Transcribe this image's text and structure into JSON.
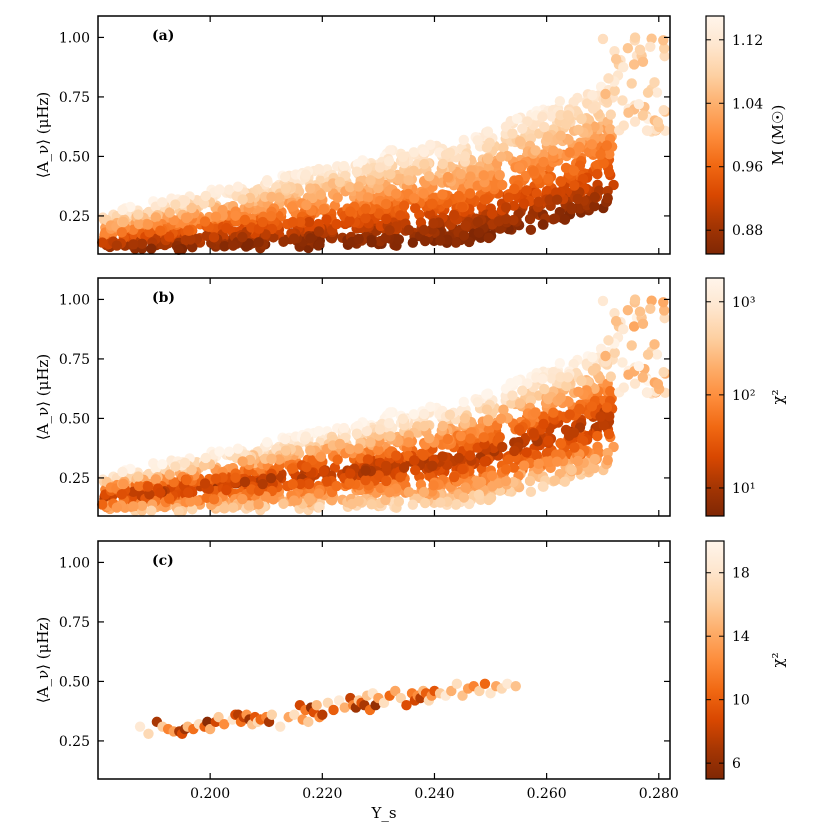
{
  "chart_data": [
    {
      "type": "scatter",
      "panel_label": "(a)",
      "ylabel": "⟨A_ν⟩ (μHz)",
      "xlim": [
        0.18,
        0.282
      ],
      "ylim": [
        0.09,
        1.09
      ],
      "yticks": [
        "0.25",
        "0.50",
        "0.75",
        "1.00"
      ],
      "colorbar": {
        "label": "M (M☉)",
        "scale": "linear",
        "range": [
          0.85,
          1.15
        ],
        "ticks": [
          "0.88",
          "0.96",
          "1.04",
          "1.12"
        ]
      },
      "grid": false,
      "legend": "none",
      "description": "Dense cloud (~1500 pts), Ys 0.180-0.282; low-mass (dark) points lie on the lower envelope, high-mass (light) on the upper envelope."
    },
    {
      "type": "scatter",
      "panel_label": "(b)",
      "ylabel": "⟨A_ν⟩ (μHz)",
      "xlim": [
        0.18,
        0.282
      ],
      "ylim": [
        0.09,
        1.09
      ],
      "yticks": [
        "0.25",
        "0.50",
        "0.75",
        "1.00"
      ],
      "colorbar": {
        "label": "χ²",
        "scale": "log",
        "range": [
          5,
          1800
        ],
        "ticks": [
          "10¹",
          "10²",
          "10³"
        ]
      },
      "grid": false,
      "legend": "none",
      "description": "Same models coloured by χ²; lowest χ² (dark) concentrated near the middle of the band."
    },
    {
      "type": "scatter",
      "panel_label": "(c)",
      "ylabel": "⟨A_ν⟩ (μHz)",
      "xlabel": "Y_s",
      "xlim": [
        0.18,
        0.282
      ],
      "ylim": [
        0.09,
        1.09
      ],
      "yticks": [
        "0.25",
        "0.50",
        "0.75",
        "1.00"
      ],
      "xticks": [
        "0.200",
        "0.220",
        "0.240",
        "0.260",
        "0.280"
      ],
      "colorbar": {
        "label": "χ²",
        "scale": "linear",
        "range": [
          5,
          20
        ],
        "ticks": [
          "6",
          "10",
          "14",
          "18"
        ]
      },
      "grid": false,
      "legend": "none",
      "points": [
        {
          "x": 0.1875,
          "y": 0.31,
          "c": 18.5
        },
        {
          "x": 0.189,
          "y": 0.28,
          "c": 17.0
        },
        {
          "x": 0.1905,
          "y": 0.33,
          "c": 7.0
        },
        {
          "x": 0.1915,
          "y": 0.31,
          "c": 16.0
        },
        {
          "x": 0.1925,
          "y": 0.3,
          "c": 12.0
        },
        {
          "x": 0.1935,
          "y": 0.29,
          "c": 13.5
        },
        {
          "x": 0.1945,
          "y": 0.29,
          "c": 7.0
        },
        {
          "x": 0.195,
          "y": 0.28,
          "c": 9.0
        },
        {
          "x": 0.1955,
          "y": 0.3,
          "c": 6.5
        },
        {
          "x": 0.196,
          "y": 0.31,
          "c": 15.0
        },
        {
          "x": 0.197,
          "y": 0.3,
          "c": 11.0
        },
        {
          "x": 0.198,
          "y": 0.32,
          "c": 17.5
        },
        {
          "x": 0.199,
          "y": 0.31,
          "c": 10.0
        },
        {
          "x": 0.1995,
          "y": 0.33,
          "c": 5.5
        },
        {
          "x": 0.2,
          "y": 0.3,
          "c": 14.5
        },
        {
          "x": 0.201,
          "y": 0.33,
          "c": 8.5
        },
        {
          "x": 0.2015,
          "y": 0.35,
          "c": 16.0
        },
        {
          "x": 0.2025,
          "y": 0.32,
          "c": 12.5
        },
        {
          "x": 0.204,
          "y": 0.34,
          "c": 18.0
        },
        {
          "x": 0.2045,
          "y": 0.36,
          "c": 9.0
        },
        {
          "x": 0.205,
          "y": 0.36,
          "c": 7.5
        },
        {
          "x": 0.2055,
          "y": 0.33,
          "c": 11.0
        },
        {
          "x": 0.206,
          "y": 0.35,
          "c": 8.0
        },
        {
          "x": 0.2065,
          "y": 0.36,
          "c": 13.0
        },
        {
          "x": 0.207,
          "y": 0.34,
          "c": 6.5
        },
        {
          "x": 0.2075,
          "y": 0.32,
          "c": 15.5
        },
        {
          "x": 0.208,
          "y": 0.35,
          "c": 9.5
        },
        {
          "x": 0.2085,
          "y": 0.33,
          "c": 17.0
        },
        {
          "x": 0.209,
          "y": 0.34,
          "c": 10.5
        },
        {
          "x": 0.21,
          "y": 0.35,
          "c": 12.0
        },
        {
          "x": 0.2105,
          "y": 0.33,
          "c": 7.0
        },
        {
          "x": 0.211,
          "y": 0.36,
          "c": 16.5
        },
        {
          "x": 0.2125,
          "y": 0.31,
          "c": 18.0
        },
        {
          "x": 0.214,
          "y": 0.35,
          "c": 14.0
        },
        {
          "x": 0.215,
          "y": 0.36,
          "c": 17.5
        },
        {
          "x": 0.216,
          "y": 0.4,
          "c": 8.5
        },
        {
          "x": 0.2165,
          "y": 0.34,
          "c": 13.0
        },
        {
          "x": 0.217,
          "y": 0.38,
          "c": 11.5
        },
        {
          "x": 0.2175,
          "y": 0.33,
          "c": 16.0
        },
        {
          "x": 0.218,
          "y": 0.39,
          "c": 6.0
        },
        {
          "x": 0.2185,
          "y": 0.37,
          "c": 9.0
        },
        {
          "x": 0.219,
          "y": 0.4,
          "c": 15.0
        },
        {
          "x": 0.2195,
          "y": 0.35,
          "c": 12.5
        },
        {
          "x": 0.22,
          "y": 0.36,
          "c": 7.5
        },
        {
          "x": 0.221,
          "y": 0.41,
          "c": 17.0
        },
        {
          "x": 0.222,
          "y": 0.38,
          "c": 10.0
        },
        {
          "x": 0.223,
          "y": 0.42,
          "c": 18.5
        },
        {
          "x": 0.224,
          "y": 0.39,
          "c": 14.5
        },
        {
          "x": 0.225,
          "y": 0.43,
          "c": 8.0
        },
        {
          "x": 0.2255,
          "y": 0.4,
          "c": 12.0
        },
        {
          "x": 0.226,
          "y": 0.39,
          "c": 6.5
        },
        {
          "x": 0.2265,
          "y": 0.42,
          "c": 16.0
        },
        {
          "x": 0.227,
          "y": 0.41,
          "c": 9.5
        },
        {
          "x": 0.2275,
          "y": 0.4,
          "c": 7.0
        },
        {
          "x": 0.228,
          "y": 0.44,
          "c": 15.5
        },
        {
          "x": 0.2285,
          "y": 0.38,
          "c": 11.0
        },
        {
          "x": 0.229,
          "y": 0.45,
          "c": 18.0
        },
        {
          "x": 0.2295,
          "y": 0.4,
          "c": 6.0
        },
        {
          "x": 0.23,
          "y": 0.43,
          "c": 13.5
        },
        {
          "x": 0.231,
          "y": 0.41,
          "c": 17.5
        },
        {
          "x": 0.232,
          "y": 0.44,
          "c": 10.5
        },
        {
          "x": 0.233,
          "y": 0.46,
          "c": 14.0
        },
        {
          "x": 0.234,
          "y": 0.43,
          "c": 16.5
        },
        {
          "x": 0.235,
          "y": 0.4,
          "c": 9.0
        },
        {
          "x": 0.236,
          "y": 0.45,
          "c": 11.5
        },
        {
          "x": 0.2365,
          "y": 0.42,
          "c": 8.5
        },
        {
          "x": 0.237,
          "y": 0.44,
          "c": 12.5
        },
        {
          "x": 0.2375,
          "y": 0.43,
          "c": 7.5
        },
        {
          "x": 0.238,
          "y": 0.46,
          "c": 15.0
        },
        {
          "x": 0.2385,
          "y": 0.45,
          "c": 10.0
        },
        {
          "x": 0.239,
          "y": 0.42,
          "c": 17.0
        },
        {
          "x": 0.2395,
          "y": 0.44,
          "c": 13.0
        },
        {
          "x": 0.24,
          "y": 0.46,
          "c": 9.5
        },
        {
          "x": 0.241,
          "y": 0.45,
          "c": 16.0
        },
        {
          "x": 0.242,
          "y": 0.44,
          "c": 18.5
        },
        {
          "x": 0.243,
          "y": 0.46,
          "c": 14.5
        },
        {
          "x": 0.244,
          "y": 0.49,
          "c": 17.5
        },
        {
          "x": 0.245,
          "y": 0.44,
          "c": 15.5
        },
        {
          "x": 0.246,
          "y": 0.47,
          "c": 13.5
        },
        {
          "x": 0.247,
          "y": 0.48,
          "c": 12.0
        },
        {
          "x": 0.248,
          "y": 0.46,
          "c": 16.5
        },
        {
          "x": 0.249,
          "y": 0.49,
          "c": 10.5
        },
        {
          "x": 0.25,
          "y": 0.45,
          "c": 18.0
        },
        {
          "x": 0.251,
          "y": 0.48,
          "c": 14.0
        },
        {
          "x": 0.252,
          "y": 0.47,
          "c": 17.0
        },
        {
          "x": 0.253,
          "y": 0.49,
          "c": 18.5
        },
        {
          "x": 0.2545,
          "y": 0.48,
          "c": 15.5
        }
      ]
    }
  ]
}
